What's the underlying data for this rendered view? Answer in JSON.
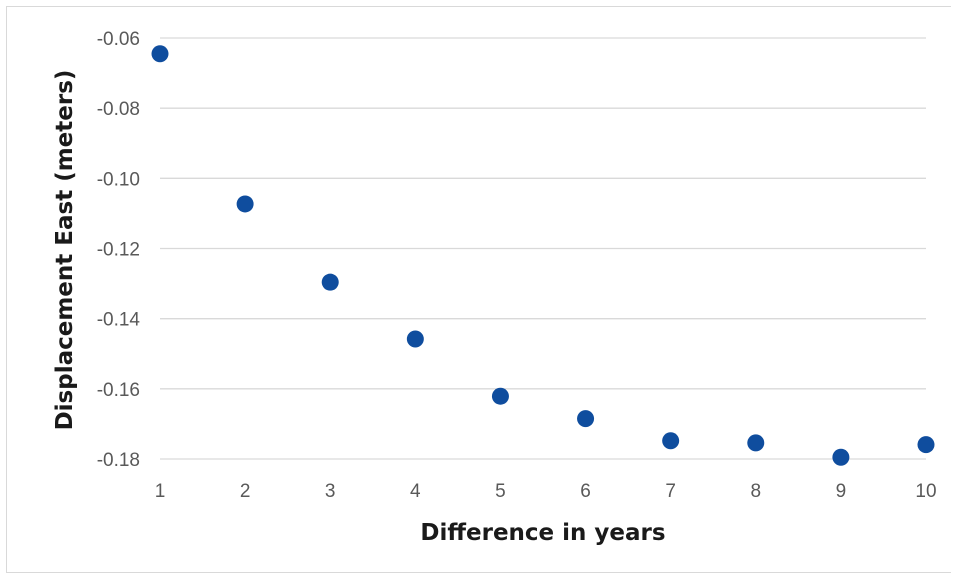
{
  "chart_data": {
    "type": "scatter",
    "xlabel": "Difference in years",
    "ylabel": "Displacement East (meters)",
    "xlim": [
      1,
      10
    ],
    "ylim": [
      -0.18,
      -0.06
    ],
    "x_ticks": [
      1,
      2,
      3,
      4,
      5,
      6,
      7,
      8,
      9,
      10
    ],
    "y_ticks": [
      -0.06,
      -0.08,
      -0.1,
      -0.12,
      -0.14,
      -0.16,
      -0.18
    ],
    "y_tick_labels": [
      "-0.06",
      "-0.08",
      "-0.10",
      "-0.12",
      "-0.14",
      "-0.16",
      "-0.18"
    ],
    "grid": true,
    "legend": "none",
    "marker_color": "#0f4d9e",
    "gridline_color": "#d9d9d9",
    "series": [
      {
        "x": [
          1,
          2,
          3,
          4,
          5,
          6,
          7,
          8,
          9,
          10
        ],
        "y": [
          -0.0645,
          -0.1073,
          -0.1296,
          -0.1458,
          -0.1621,
          -0.1685,
          -0.1748,
          -0.1754,
          -0.1795,
          -0.1759
        ]
      }
    ]
  }
}
